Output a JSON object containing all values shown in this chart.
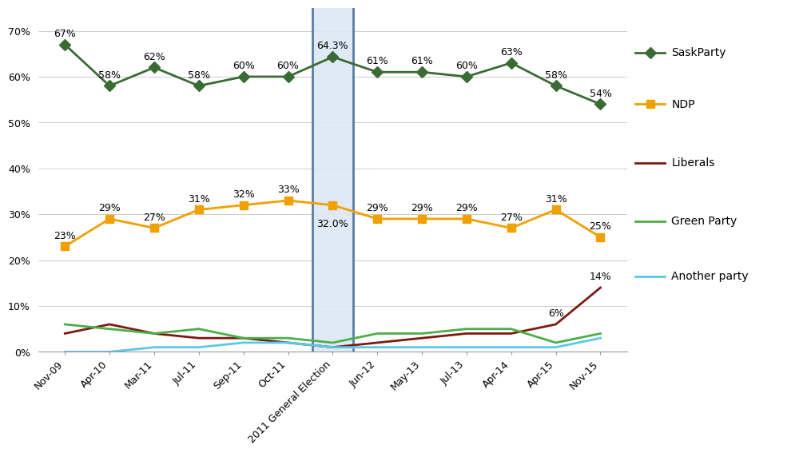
{
  "x_labels": [
    "Nov-09",
    "Apr-10",
    "Mar-11",
    "Jul-11",
    "Sep-11",
    "Oct-11",
    "2011 General Election",
    "Jun-12",
    "May-13",
    "Jul-13",
    "Apr-14",
    "Apr-15",
    "Nov-15"
  ],
  "x_positions": [
    0,
    1,
    2,
    3,
    4,
    5,
    6,
    7,
    8,
    9,
    10,
    11,
    12
  ],
  "election_idx": 6,
  "sask_party": [
    67,
    58,
    62,
    58,
    60,
    60,
    64.3,
    61,
    61,
    60,
    63,
    58,
    54
  ],
  "ndp": [
    23,
    29,
    27,
    31,
    32,
    33,
    32.0,
    29,
    29,
    29,
    27,
    31,
    25
  ],
  "liberals": [
    4,
    6,
    4,
    3,
    3,
    2,
    1,
    2,
    3,
    4,
    4,
    6,
    14
  ],
  "green": [
    6,
    5,
    4,
    5,
    3,
    3,
    2,
    4,
    4,
    5,
    5,
    2,
    4
  ],
  "another": [
    0,
    0,
    1,
    1,
    2,
    2,
    1,
    1,
    1,
    1,
    1,
    1,
    3
  ],
  "sask_labels": [
    "67%",
    "58%",
    "62%",
    "58%",
    "60%",
    "60%",
    "64.3%",
    "61%",
    "61%",
    "60%",
    "63%",
    "58%",
    "54%"
  ],
  "ndp_labels": [
    "23%",
    "29%",
    "27%",
    "31%",
    "32%",
    "33%",
    "32.0%",
    "29%",
    "29%",
    "29%",
    "27%",
    "31%",
    "25%"
  ],
  "lib_labels": [
    "",
    "",
    "",
    "",
    "",
    "",
    "",
    "",
    "",
    "",
    "",
    "6%",
    "14%"
  ],
  "sask_color": "#3a6b35",
  "ndp_color": "#f0a000",
  "lib_color": "#7b1a10",
  "green_color": "#4aaf4a",
  "another_color": "#5bc8e8",
  "election_box_color": "#dce8f5",
  "election_box_edge": "#4a6fa0",
  "ylim": [
    0,
    75
  ],
  "yticks": [
    0,
    10,
    20,
    30,
    40,
    50,
    60,
    70
  ],
  "ytick_labels": [
    "0%",
    "10%",
    "20%",
    "30%",
    "40%",
    "50%",
    "60%",
    "70%"
  ],
  "label_fontsize": 9,
  "tick_fontsize": 9,
  "legend_fontsize": 10,
  "background_color": "#ffffff"
}
